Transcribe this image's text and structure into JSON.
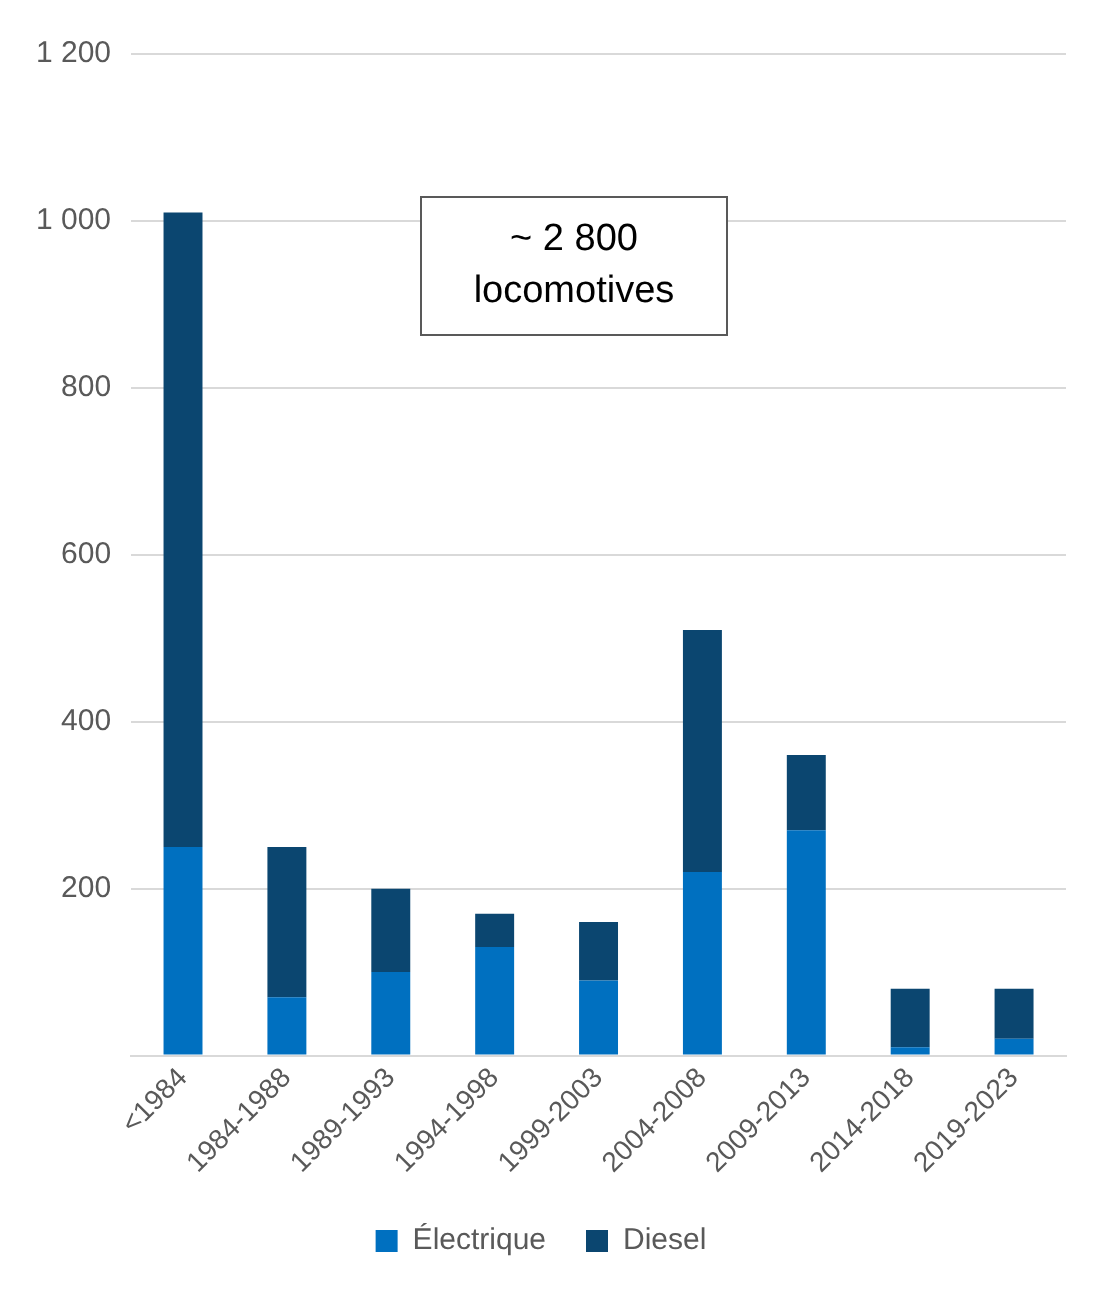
{
  "chart_data": {
    "type": "bar",
    "stacked": true,
    "categories": [
      "<1984",
      "1984-1988",
      "1989-1993",
      "1994-1998",
      "1999-2003",
      "2004-2008",
      "2009-2013",
      "2014-2018",
      "2019-2023"
    ],
    "series": [
      {
        "name": "Électrique",
        "color": "#0070c0",
        "values": [
          250,
          70,
          100,
          130,
          90,
          220,
          270,
          10,
          20
        ]
      },
      {
        "name": "Diesel",
        "color": "#0b4670",
        "values": [
          760,
          180,
          100,
          40,
          70,
          290,
          90,
          70,
          60
        ]
      }
    ],
    "ylim": [
      0,
      1200
    ],
    "yticks": [
      {
        "value": 0,
        "label": null
      },
      200,
      400,
      600,
      800,
      {
        "value": 1000,
        "label": "1 000"
      },
      {
        "value": 1200,
        "label": "1 200"
      }
    ],
    "grid": "y",
    "legend": "bottom",
    "annotations": [
      "~ 2 800 locomotives"
    ]
  }
}
